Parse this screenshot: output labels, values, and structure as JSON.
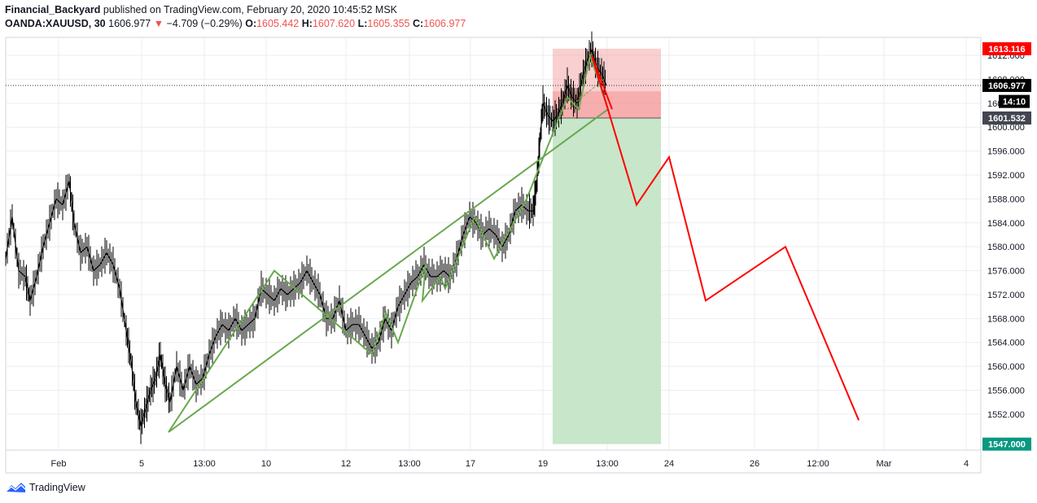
{
  "header": {
    "author": "Financial_Backyard",
    "published_text": "published on TradingView.com, February 20, 2020 10:45:52 MSK",
    "symbol": "OANDA:XAUUSD, 30",
    "last": "1606.977",
    "change_arrow": "▼",
    "change": "−4.709 (−0.29%)",
    "open_label": "O:",
    "open": "1605.442",
    "high_label": "H:",
    "high": "1607.620",
    "low_label": "L:",
    "low": "1605.355",
    "close_label": "C:",
    "close": "1606.977"
  },
  "footer": {
    "brand": "TradingView"
  },
  "colors": {
    "candle": "#000000",
    "zigzag": "#6aa84f",
    "projection": "#ff0000",
    "stop_zone": "#f4a7a7",
    "target_zone": "#c8e6c9",
    "grid": "#eceef2",
    "axis_text": "#131722"
  },
  "chart_data": {
    "type": "line",
    "symbol": "OANDA:XAUUSD",
    "interval": "30",
    "ylim": [
      1546,
      1615
    ],
    "y_ticks": [
      "1552.000",
      "1556.000",
      "1560.000",
      "1564.000",
      "1568.000",
      "1572.000",
      "1576.000",
      "1580.000",
      "1584.000",
      "1588.000",
      "1592.000",
      "1596.000",
      "1600.000",
      "1604.000",
      "1608.000",
      "1612.000"
    ],
    "x_ticks": [
      "Feb",
      "5",
      "13:00",
      "10",
      "12",
      "13:00",
      "17",
      "19",
      "13:00",
      "24",
      "26",
      "12:00",
      "Mar",
      "4"
    ],
    "price_labels": [
      {
        "text": "1613.116",
        "color": "#ff0000",
        "y": 1613.116
      },
      {
        "text": "1606.977",
        "color": "#000000",
        "y": 1606.977
      },
      {
        "text": "14:10",
        "color": "#000000",
        "y": 1604.3
      },
      {
        "text": "1601.532",
        "color": "#434651",
        "y": 1601.532
      },
      {
        "text": "1547.000",
        "color": "#089981",
        "y": 1547.0
      }
    ],
    "price_path": [
      [
        0,
        1578
      ],
      [
        8,
        1585
      ],
      [
        16,
        1576
      ],
      [
        24,
        1575
      ],
      [
        30,
        1571
      ],
      [
        38,
        1575
      ],
      [
        46,
        1580
      ],
      [
        54,
        1584
      ],
      [
        62,
        1588
      ],
      [
        70,
        1587
      ],
      [
        78,
        1591
      ],
      [
        84,
        1584
      ],
      [
        92,
        1579
      ],
      [
        100,
        1580
      ],
      [
        108,
        1576
      ],
      [
        116,
        1577
      ],
      [
        124,
        1579
      ],
      [
        132,
        1577
      ],
      [
        140,
        1573
      ],
      [
        148,
        1566
      ],
      [
        154,
        1561
      ],
      [
        160,
        1554
      ],
      [
        166,
        1550
      ],
      [
        172,
        1553
      ],
      [
        178,
        1556
      ],
      [
        184,
        1558
      ],
      [
        190,
        1562
      ],
      [
        196,
        1557
      ],
      [
        202,
        1554
      ],
      [
        210,
        1560
      ],
      [
        218,
        1556
      ],
      [
        226,
        1560
      ],
      [
        234,
        1557
      ],
      [
        242,
        1558
      ],
      [
        250,
        1562
      ],
      [
        258,
        1565
      ],
      [
        266,
        1567
      ],
      [
        274,
        1566
      ],
      [
        282,
        1568
      ],
      [
        290,
        1566
      ],
      [
        298,
        1567
      ],
      [
        306,
        1568
      ],
      [
        314,
        1573
      ],
      [
        322,
        1572
      ],
      [
        330,
        1571
      ],
      [
        338,
        1573
      ],
      [
        346,
        1572
      ],
      [
        354,
        1573
      ],
      [
        362,
        1574
      ],
      [
        370,
        1576
      ],
      [
        378,
        1574
      ],
      [
        386,
        1572
      ],
      [
        394,
        1568
      ],
      [
        402,
        1568
      ],
      [
        410,
        1571
      ],
      [
        418,
        1566
      ],
      [
        426,
        1567
      ],
      [
        434,
        1567
      ],
      [
        442,
        1565
      ],
      [
        450,
        1563
      ],
      [
        458,
        1564
      ],
      [
        466,
        1568
      ],
      [
        474,
        1566
      ],
      [
        482,
        1570
      ],
      [
        490,
        1572
      ],
      [
        498,
        1574
      ],
      [
        506,
        1575
      ],
      [
        514,
        1577
      ],
      [
        522,
        1575
      ],
      [
        530,
        1575
      ],
      [
        538,
        1576
      ],
      [
        546,
        1575
      ],
      [
        554,
        1578
      ],
      [
        562,
        1582
      ],
      [
        570,
        1585
      ],
      [
        578,
        1584
      ],
      [
        586,
        1582
      ],
      [
        594,
        1583
      ],
      [
        602,
        1582
      ],
      [
        610,
        1580
      ],
      [
        618,
        1582
      ],
      [
        626,
        1586
      ],
      [
        634,
        1587
      ],
      [
        642,
        1586
      ],
      [
        648,
        1586
      ],
      [
        652,
        1590
      ],
      [
        656,
        1597
      ],
      [
        660,
        1604
      ],
      [
        666,
        1602
      ],
      [
        672,
        1601
      ],
      [
        678,
        1602
      ],
      [
        684,
        1604
      ],
      [
        690,
        1607
      ],
      [
        696,
        1605
      ],
      [
        702,
        1604
      ],
      [
        708,
        1608
      ],
      [
        714,
        1611
      ],
      [
        720,
        1613
      ],
      [
        726,
        1610
      ],
      [
        732,
        1609
      ],
      [
        738,
        1607
      ]
    ],
    "zigzag": [
      [
        200,
        1549
      ],
      [
        330,
        1576
      ],
      [
        450,
        1562
      ],
      [
        467,
        1569
      ],
      [
        482,
        1564
      ],
      [
        516,
        1577
      ],
      [
        512,
        1571
      ],
      [
        534,
        1575
      ],
      [
        540,
        1573
      ],
      [
        576,
        1585
      ],
      [
        600,
        1578
      ],
      [
        640,
        1588
      ],
      [
        690,
        1605
      ],
      [
        704,
        1603
      ],
      [
        718,
        1612
      ],
      [
        740,
        1603
      ],
      [
        200,
        1549
      ]
    ],
    "zigzag_secondary": [
      [
        690,
        1603
      ],
      [
        735,
        1608
      ]
    ],
    "projection": [
      [
        720,
        1612
      ],
      [
        775,
        1587
      ],
      [
        815,
        1595
      ],
      [
        860,
        1571
      ],
      [
        958,
        1580
      ],
      [
        1048,
        1551
      ]
    ],
    "projection_branch": [
      [
        720,
        1612
      ],
      [
        745,
        1603
      ]
    ],
    "position": {
      "entry": 1606.0,
      "stop": 1613.116,
      "target": 1547.0,
      "current": 1601.532
    }
  }
}
